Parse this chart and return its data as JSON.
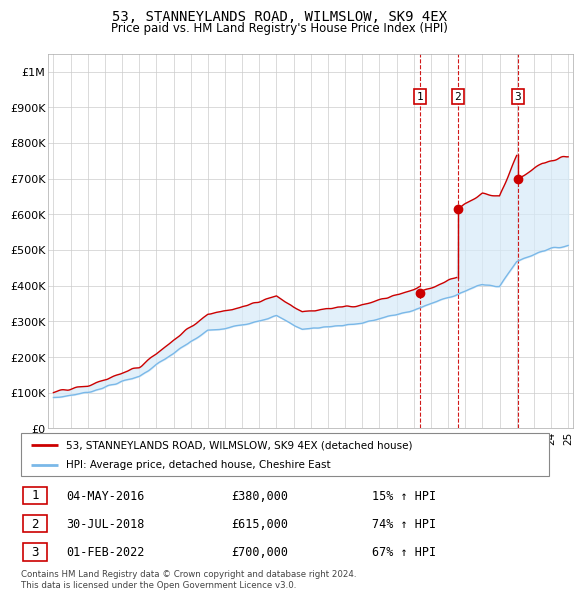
{
  "title": "53, STANNEYLANDS ROAD, WILMSLOW, SK9 4EX",
  "subtitle": "Price paid vs. HM Land Registry's House Price Index (HPI)",
  "legend_line1": "53, STANNEYLANDS ROAD, WILMSLOW, SK9 4EX (detached house)",
  "legend_line2": "HPI: Average price, detached house, Cheshire East",
  "footnote1": "Contains HM Land Registry data © Crown copyright and database right 2024.",
  "footnote2": "This data is licensed under the Open Government Licence v3.0.",
  "transactions": [
    {
      "num": "1",
      "date": "04-MAY-2016",
      "price": "£380,000",
      "hpi": "15% ↑ HPI",
      "year": 2016.35
    },
    {
      "num": "2",
      "date": "30-JUL-2018",
      "price": "£615,000",
      "hpi": "74% ↑ HPI",
      "year": 2018.58
    },
    {
      "num": "3",
      "date": "01-FEB-2022",
      "price": "£700,000",
      "hpi": "67% ↑ HPI",
      "year": 2022.08
    }
  ],
  "trans_prices": [
    380000,
    615000,
    700000
  ],
  "hpi_color": "#7ab8e8",
  "price_color": "#cc0000",
  "fill_color": "#d6eaf8",
  "dashed_color": "#cc0000",
  "ylim": [
    0,
    1050000
  ],
  "yticks": [
    0,
    100000,
    200000,
    300000,
    400000,
    500000,
    600000,
    700000,
    800000,
    900000,
    1000000
  ],
  "ylabel_map": {
    "0": "£0",
    "100000": "£100K",
    "200000": "£200K",
    "300000": "£300K",
    "400000": "£400K",
    "500000": "£500K",
    "600000": "£600K",
    "700000": "£700K",
    "800000": "£800K",
    "900000": "£900K",
    "1000000": "£1M"
  }
}
